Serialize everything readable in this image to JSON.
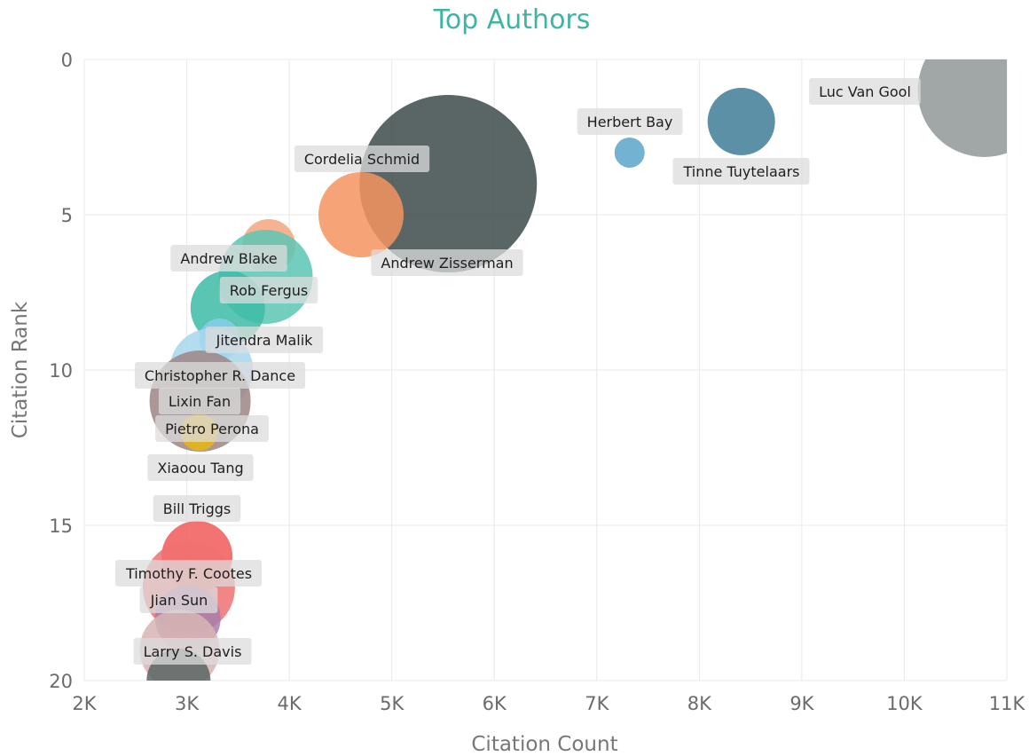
{
  "chart_data": {
    "type": "scatter",
    "subtype": "bubble",
    "title": "Top Authors",
    "xlabel": "Citation Count",
    "ylabel": "Citation Rank",
    "xlim": [
      2000,
      11000
    ],
    "ylim": [
      0,
      20
    ],
    "y_inverted": true,
    "grid": true,
    "x_ticks": [
      "2K",
      "3K",
      "4K",
      "5K",
      "6K",
      "7K",
      "8K",
      "9K",
      "10K",
      "11K"
    ],
    "y_ticks": [
      "0",
      "5",
      "10",
      "15",
      "20"
    ],
    "points": [
      {
        "label": "Luc Van Gool",
        "x": 10780,
        "y": 1,
        "size": 75,
        "color": "#8f9896"
      },
      {
        "label": "Tinne Tuytelaars",
        "x": 8410,
        "y": 2,
        "size": 38,
        "color": "#3e7d96"
      },
      {
        "label": "Herbert Bay",
        "x": 7320,
        "y": 3,
        "size": 17,
        "color": "#5ba6c9"
      },
      {
        "label": "Andrew Zisserman",
        "x": 5550,
        "y": 4,
        "size": 100,
        "color": "#3d4a4a"
      },
      {
        "label": "Cordelia Schmid",
        "x": 4700,
        "y": 5,
        "size": 48,
        "color": "#f4945f"
      },
      {
        "label": "Andrew Blake",
        "x": 3800,
        "y": 6,
        "size": 30,
        "color": "#f5a57f"
      },
      {
        "label": "Rob Fergus",
        "x": 3770,
        "y": 7,
        "size": 53,
        "color": "#5cc6b4"
      },
      {
        "label": "Xiaoou Tang",
        "x": 3400,
        "y": 8,
        "size": 42,
        "color": "#3dbba6"
      },
      {
        "label": "Jitendra Malik",
        "x": 3320,
        "y": 9,
        "size": 23,
        "color": "#87ccea"
      },
      {
        "label": "Christopher R. Dance",
        "x": 3240,
        "y": 10,
        "size": 47,
        "color": "#a6d6ec"
      },
      {
        "label": "Lixin Fan",
        "x": 3130,
        "y": 11,
        "size": 57,
        "color": "#9e8585"
      },
      {
        "label": "Pietro Perona",
        "x": 3120,
        "y": 12,
        "size": 21,
        "color": "#e8b50f"
      },
      {
        "label": "Bill Triggs",
        "x": 3100,
        "y": 16,
        "size": 40,
        "color": "#f15b5b"
      },
      {
        "label": "Timothy F. Cootes",
        "x": 3020,
        "y": 17,
        "size": 52,
        "color": "#f07070"
      },
      {
        "label": "Jian Sun",
        "x": 3010,
        "y": 18,
        "size": 37,
        "color": "#a77fad"
      },
      {
        "label": "Larry S. Davis",
        "x": 2930,
        "y": 19,
        "size": 45,
        "color": "#d7b5b3"
      },
      {
        "label": "",
        "x": 2920,
        "y": 20,
        "size": 36,
        "color": "#5b6464"
      }
    ]
  }
}
